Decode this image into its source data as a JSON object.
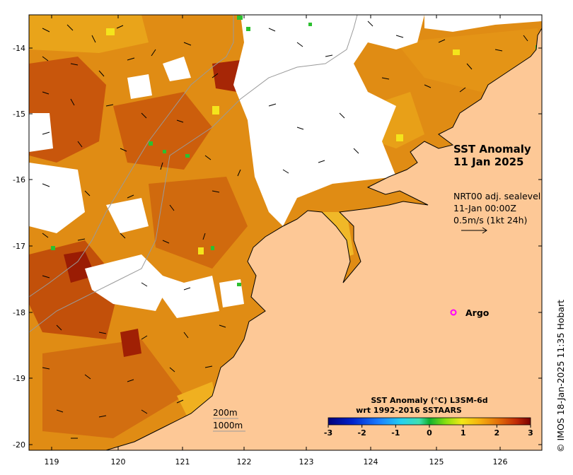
{
  "map": {
    "title_line1": "SST Anomaly",
    "title_line2": "11 Jan 2025",
    "current_info": {
      "line1": "NRT00 adj. sealevel",
      "line2": "11-Jan 00:00Z",
      "line3": "0.5m/s (1kt 24h)"
    },
    "x_ticks": [
      "119",
      "120",
      "121",
      "122",
      "123",
      "124",
      "125",
      "126"
    ],
    "y_ticks": [
      "-14",
      "-15",
      "-16",
      "-17",
      "-18",
      "-19",
      "-20"
    ],
    "marker": {
      "label": "Argo",
      "color": "#ff00ff"
    },
    "contour_legend": {
      "line1": "200m",
      "line2": "1000m"
    },
    "credit": "© IMOS 18-Jan-2025 11:35 Hobart",
    "colorbar": {
      "title_line1": "SST Anomaly (°C) L3SM-6d",
      "title_line2": "wrt 1992-2016 SSTAARS",
      "ticks": [
        "-3",
        "-2",
        "-1",
        "0",
        "1",
        "2",
        "3"
      ]
    },
    "colors": {
      "land": "#fdc896",
      "no_data": "#ffffff",
      "warm_dark": "#c8500a",
      "warm_mid": "#e38a10",
      "warm_light": "#f0b020",
      "coast": "#000000",
      "bathymetry": "#9a9a9a"
    }
  }
}
